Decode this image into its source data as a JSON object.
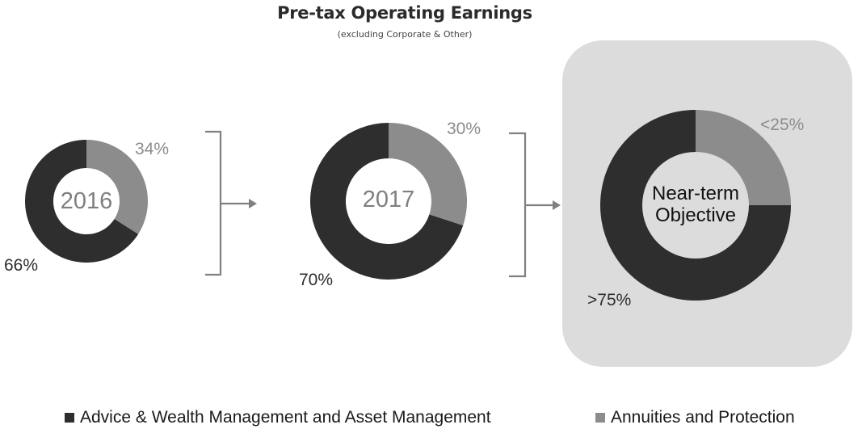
{
  "header": {
    "title": "Pre-tax Operating Earnings",
    "subtitle": "(excluding Corporate & Other)"
  },
  "colors": {
    "advice_wealth": "#2e2e2e",
    "annuities": "#8c8c8c",
    "panel": "#dcdcdc",
    "connector": "#808080"
  },
  "donuts": [
    {
      "center_label": "2016",
      "dark_label": "66%",
      "grey_label": "34%"
    },
    {
      "center_label": "2017",
      "dark_label": "70%",
      "grey_label": "30%"
    },
    {
      "center_label_line1": "Near-term",
      "center_label_line2": "Objective",
      "dark_label": ">75%",
      "grey_label": "<25%"
    }
  ],
  "legend": {
    "items": [
      {
        "label": "Advice & Wealth Management and Asset Management",
        "color": "#2e2e2e"
      },
      {
        "label": "Annuities and Protection",
        "color": "#8c8c8c"
      }
    ]
  },
  "chart_data": {
    "type": "pie",
    "subtype": "donut",
    "title": "Pre-tax Operating Earnings",
    "subtitle": "(excluding Corporate & Other)",
    "categories": [
      "Advice & Wealth Management and Asset Management",
      "Annuities and Protection"
    ],
    "series": [
      {
        "name": "2016",
        "values": [
          66,
          34
        ],
        "labels": [
          "66%",
          "34%"
        ]
      },
      {
        "name": "2017",
        "values": [
          70,
          30
        ],
        "labels": [
          "70%",
          "30%"
        ]
      },
      {
        "name": "Near-term Objective",
        "values": [
          75,
          25
        ],
        "labels": [
          ">75%",
          "<25%"
        ]
      }
    ],
    "legend_position": "bottom",
    "annotations": [
      "Near-term Objective highlighted in rounded grey panel",
      "bracket arrows connect 2016 → 2017 → Near-term Objective"
    ]
  }
}
